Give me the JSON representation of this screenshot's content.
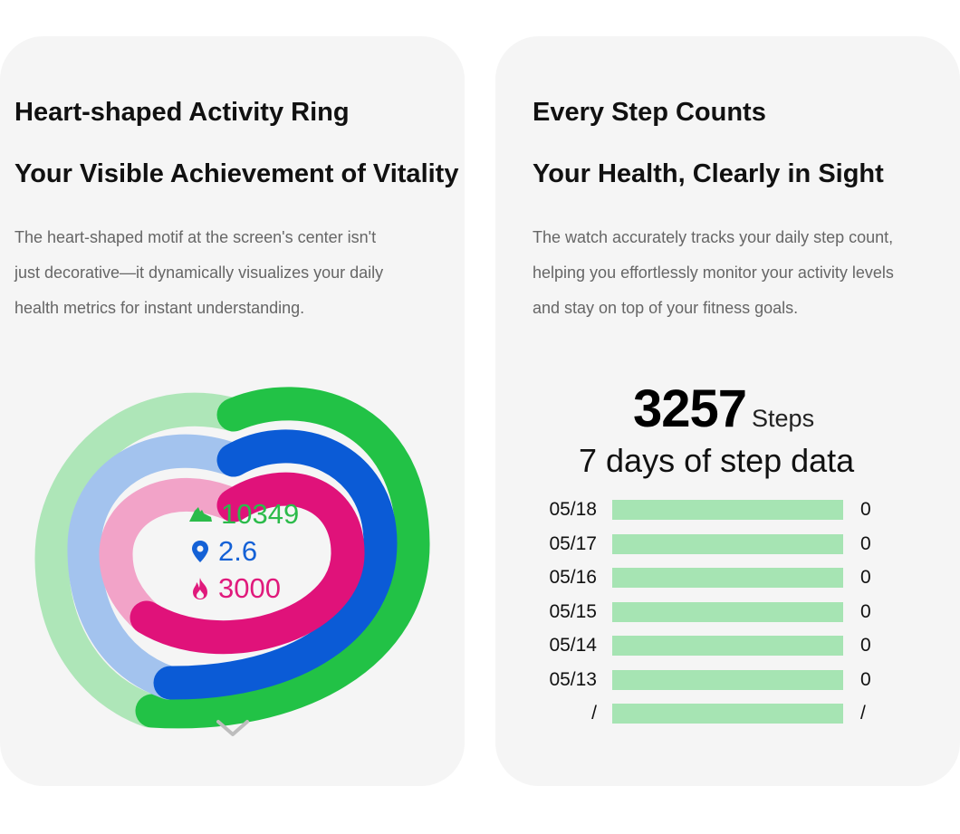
{
  "left_card": {
    "title_line1": "Heart-shaped Activity Ring",
    "title_line2": "Your Visible Achievement of Vitality",
    "description": [
      "The heart-shaped motif at the screen's center isn't",
      "just decorative—it dynamically visualizes your daily",
      "health metrics for instant understanding."
    ],
    "ring_colors": {
      "outer_track": "#aee6b8",
      "outer_fill": "#22c246",
      "middle_track": "#a3c3ee",
      "middle_fill": "#0b5bd6",
      "inner_track": "#f2a3c8",
      "inner_fill": "#e0127a"
    },
    "metrics": [
      {
        "icon": "shoe-icon",
        "value": "10349",
        "color": "#2bbb4a"
      },
      {
        "icon": "location-pin-icon",
        "value": "2.6",
        "color": "#1461d6"
      },
      {
        "icon": "flame-icon",
        "value": "3000",
        "color": "#e01a7c"
      }
    ],
    "scroll_icon": "chevron-down-icon"
  },
  "right_card": {
    "title_line1": "Every Step Counts",
    "title_line2": "Your Health, Clearly in Sight",
    "description": [
      "The watch accurately tracks your daily step count,",
      "helping you effortlessly monitor your activity levels",
      "and stay on top of your fitness goals."
    ],
    "steps_value": "3257",
    "steps_unit": "Steps",
    "history_title": "7 days of step data",
    "history_bar_color": "#a6e4b3",
    "history": [
      {
        "date": "05/18",
        "value": "0"
      },
      {
        "date": "05/17",
        "value": "0"
      },
      {
        "date": "05/16",
        "value": "0"
      },
      {
        "date": "05/15",
        "value": "0"
      },
      {
        "date": "05/14",
        "value": "0"
      },
      {
        "date": "05/13",
        "value": "0"
      },
      {
        "date": "/",
        "value": "/"
      }
    ]
  }
}
